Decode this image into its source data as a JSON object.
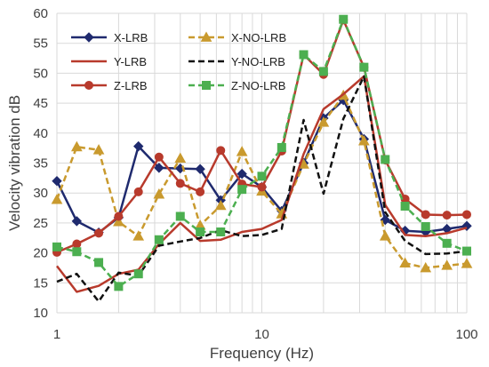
{
  "chart_data": {
    "type": "line",
    "x_scale": "log",
    "xlabel": "Frequency (Hz)",
    "ylabel": "Velocity vibration dB",
    "xlim": [
      1,
      100
    ],
    "ylim": [
      10,
      60
    ],
    "x_ticks": [
      1,
      10,
      100
    ],
    "y_ticks": [
      10,
      15,
      20,
      25,
      30,
      35,
      40,
      45,
      50,
      55,
      60
    ],
    "grid": true,
    "legend_position": "top-left, two columns",
    "x": [
      1,
      1.25,
      1.6,
      2,
      2.5,
      3.15,
      4,
      5,
      6.3,
      8,
      10,
      12.5,
      16,
      20,
      25,
      31.5,
      40,
      50,
      63,
      80,
      100
    ],
    "series": [
      {
        "name": "X-LRB",
        "color": "#1f2a6e",
        "dash": "solid",
        "marker": "diamond",
        "values": [
          32,
          25.3,
          23.4,
          25.9,
          37.8,
          34.2,
          34.1,
          34.0,
          28.8,
          33.2,
          31.0,
          27.0,
          35.0,
          42.5,
          45.5,
          39.0,
          25.5,
          23.7,
          23.5,
          24.0,
          24.5
        ]
      },
      {
        "name": "X-NO-LRB",
        "color": "#c99a2e",
        "dash": "dashed",
        "marker": "triangle",
        "values": [
          28.9,
          37.7,
          37.2,
          25.2,
          22.8,
          29.8,
          35.8,
          24.6,
          27.9,
          36.9,
          30.3,
          26.5,
          34.8,
          41.8,
          46.3,
          38.7,
          22.8,
          18.3,
          17.5,
          17.9,
          18.2
        ]
      },
      {
        "name": "Y-LRB",
        "color": "#b83a2c",
        "dash": "solid",
        "marker": "none",
        "values": [
          17.8,
          13.5,
          14.5,
          16.5,
          17.2,
          21.5,
          25.0,
          22.0,
          22.2,
          23.5,
          24.0,
          25.5,
          36.5,
          44.0,
          46.5,
          49.5,
          28.0,
          23.0,
          22.8,
          23.3,
          24.2
        ]
      },
      {
        "name": "Y-NO-LRB",
        "color": "#111111",
        "dash": "dashed",
        "marker": "none",
        "values": [
          15.2,
          16.5,
          11.9,
          16.7,
          16.2,
          21.2,
          21.9,
          22.5,
          23.8,
          22.8,
          23.0,
          24.0,
          42.2,
          29.9,
          42.4,
          49.5,
          26.8,
          22.0,
          19.8,
          19.9,
          20.3
        ]
      },
      {
        "name": "Z-LRB",
        "color": "#b83a2c",
        "dash": "solid",
        "marker": "circle",
        "values": [
          20.1,
          21.5,
          23.3,
          26.1,
          30.2,
          36.0,
          31.6,
          30.2,
          37.1,
          31.5,
          31.0,
          37.0,
          53.1,
          49.8,
          58.9,
          51.0,
          35.5,
          29.0,
          26.4,
          26.3,
          26.4
        ]
      },
      {
        "name": "Z-NO-LRB",
        "color": "#4caf50",
        "dash": "dashed",
        "marker": "square",
        "values": [
          21.0,
          20.2,
          18.4,
          14.4,
          16.5,
          22.2,
          26.1,
          23.5,
          23.5,
          30.6,
          32.8,
          37.6,
          53.1,
          50.3,
          59.0,
          51.0,
          35.6,
          27.8,
          24.4,
          21.6,
          20.3
        ]
      }
    ]
  }
}
